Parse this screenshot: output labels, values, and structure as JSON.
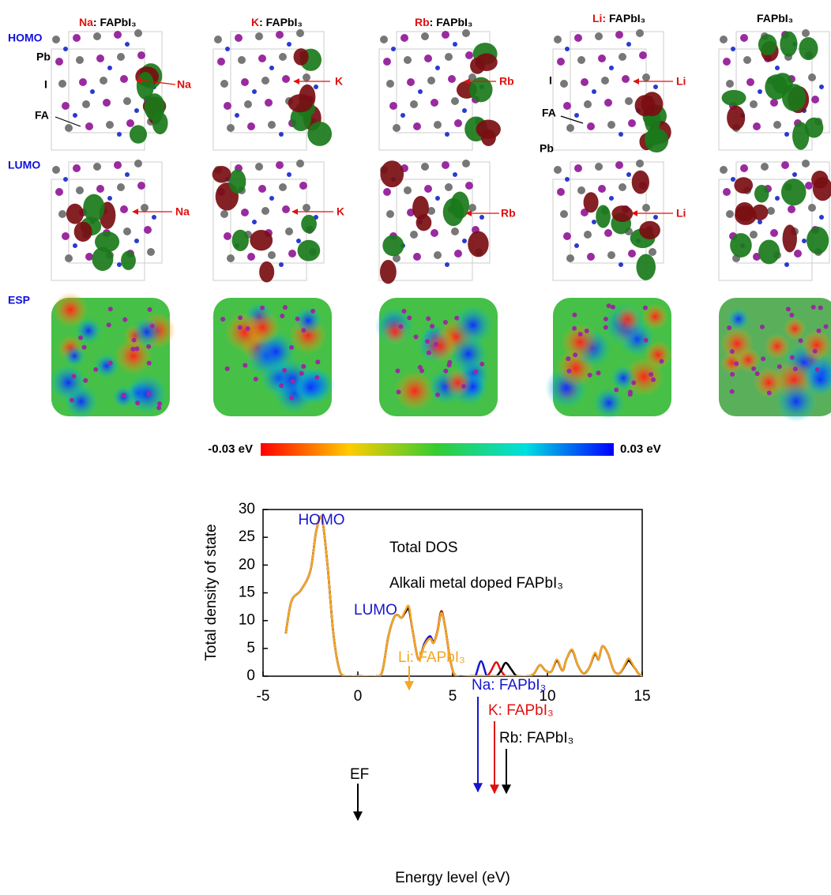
{
  "figure_top": {
    "columns": [
      {
        "dopant": "Na",
        "host": ": FAPbI₃"
      },
      {
        "dopant": "K",
        "host": ": FAPbI₃"
      },
      {
        "dopant": "Rb",
        "host": ": FAPbI₃"
      },
      {
        "dopant": "Li:",
        "host": " FAPbI₃"
      },
      {
        "host": "FAPbI₃"
      }
    ],
    "rows": [
      "HOMO",
      "LUMO",
      "ESP"
    ],
    "atom_labels": [
      "Pb",
      "I",
      "FA",
      "I",
      "FA",
      "Pb"
    ],
    "dopant_labels": [
      "Na",
      "K",
      "Rb",
      "Li",
      "Na",
      "K",
      "Rb",
      "Li"
    ],
    "colorbar": {
      "min_label": "-0.03 eV",
      "max_label": "0.03 eV"
    }
  },
  "chart_data": {
    "type": "line",
    "xlabel": "Energy level (eV)",
    "ylabel": "Total density of state",
    "annotations": [
      "HOMO",
      "LUMO",
      "Total DOS",
      "Alkali metal doped FAPbI₃",
      "Li: FAPbI₃",
      "Na: FAPbI₃",
      "K: FAPbI₃",
      "Rb: FAPbI₃",
      "EF"
    ],
    "xlim": [
      -5,
      15
    ],
    "xticks": [
      -5,
      0,
      5,
      10,
      15
    ],
    "ylim": [
      0,
      30
    ],
    "yticks": [
      0,
      5,
      10,
      15,
      20,
      25,
      30
    ],
    "x": [
      -3.8,
      -3.5,
      -3.0,
      -2.5,
      -2.2,
      -1.9,
      -1.6,
      -1.3,
      -1.0,
      -0.7,
      0,
      1.0,
      1.3,
      1.6,
      1.9,
      2.1,
      2.3,
      2.5,
      2.7,
      2.9,
      3.2,
      3.5,
      3.8,
      4.0,
      4.2,
      4.4,
      4.6,
      4.9,
      5.2,
      6.0,
      6.2,
      6.5,
      6.8,
      7.0,
      7.3,
      7.55,
      7.8,
      8.1,
      8.4,
      9.0,
      9.3,
      9.6,
      9.9,
      10.2,
      10.5,
      10.8,
      11.0,
      11.3,
      11.6,
      11.9,
      12.2,
      12.5,
      12.7,
      12.9,
      13.2,
      13.5,
      13.8,
      14.1,
      14.3,
      14.6,
      14.8,
      15.0
    ],
    "series": [
      {
        "name": "Na: FAPbI₃",
        "color": "#1515d0",
        "values": [
          7.7,
          13.5,
          15.5,
          19,
          26,
          28.5,
          20,
          8,
          1.5,
          0,
          0,
          0,
          1,
          7,
          10.5,
          11,
          10.5,
          11.5,
          12,
          8,
          3,
          5.8,
          7.2,
          6.2,
          8,
          11.3,
          9,
          2.5,
          0,
          0,
          0,
          2.7,
          0,
          0,
          0,
          0,
          0,
          0,
          0,
          0,
          0.5,
          2,
          1,
          0.8,
          2.8,
          1,
          3,
          4.7,
          2,
          0.5,
          1.5,
          4,
          3,
          5.4,
          4,
          1,
          0.5,
          2,
          2.8,
          1.5,
          0.5,
          0
        ]
      },
      {
        "name": "K: FAPbI₃",
        "color": "#e01010",
        "values": [
          7.7,
          13.5,
          15.5,
          19,
          26,
          28.5,
          20,
          8,
          1.5,
          0,
          0,
          0,
          1,
          7,
          10.5,
          11,
          10.5,
          11.5,
          12,
          8,
          3,
          5.5,
          6.8,
          6,
          8.2,
          11.7,
          9,
          2.5,
          0,
          0,
          0,
          0,
          0,
          0.8,
          2.5,
          1,
          0,
          0,
          0,
          0,
          0.5,
          2,
          1,
          0.8,
          2.8,
          1,
          3,
          4.7,
          2,
          0.5,
          1.5,
          4,
          3,
          5.4,
          4,
          1,
          0.5,
          2,
          2.8,
          1.5,
          0.5,
          0
        ]
      },
      {
        "name": "Rb: FAPbI₃",
        "color": "#000000",
        "values": [
          7.7,
          13.5,
          15.5,
          19,
          26,
          28.5,
          20,
          8,
          1.5,
          0,
          0,
          0,
          1,
          7,
          10.5,
          11,
          10.5,
          11.5,
          12,
          8,
          3,
          5.5,
          6.8,
          6,
          8,
          11.5,
          9,
          2.5,
          0,
          0,
          0,
          0,
          0,
          0,
          0,
          1,
          2.4,
          1.2,
          0,
          0,
          0.5,
          2,
          1,
          0.8,
          2.8,
          1,
          3,
          4.7,
          2,
          0.5,
          1.5,
          4,
          3,
          5.4,
          4,
          1,
          0.5,
          2,
          2.8,
          1.5,
          0.5,
          0
        ]
      },
      {
        "name": "Li: FAPbI₃",
        "color": "#f5a623",
        "values": [
          7.7,
          13.5,
          15.5,
          19,
          26,
          28.5,
          20,
          8,
          1.5,
          0,
          0,
          0,
          1,
          7,
          10.5,
          11,
          10.5,
          11.8,
          12.5,
          8,
          3,
          5.5,
          6.8,
          6,
          8,
          11.4,
          9,
          2.5,
          0,
          0,
          0,
          0,
          0,
          0,
          0,
          0,
          0,
          0,
          0,
          0,
          0.5,
          2,
          1,
          0.8,
          3,
          1,
          3,
          4.8,
          2,
          0.5,
          1.5,
          4.2,
          3,
          5.4,
          4,
          1,
          0.5,
          2.2,
          3.2,
          1.5,
          0.5,
          0
        ]
      }
    ]
  }
}
